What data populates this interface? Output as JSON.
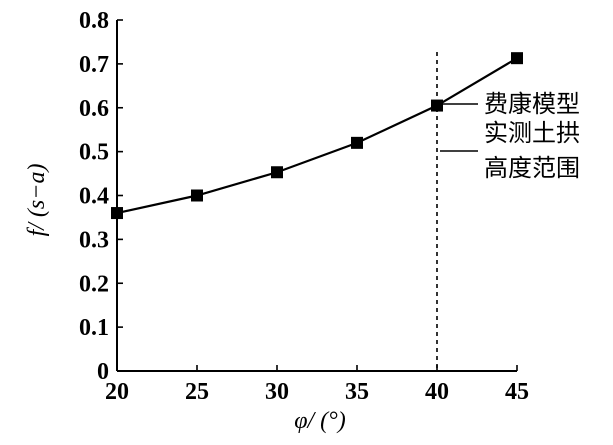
{
  "chart_data": {
    "type": "line",
    "x": [
      20,
      25,
      30,
      35,
      40,
      45
    ],
    "series": [
      {
        "name": "费康模型",
        "values": [
          0.36,
          0.4,
          0.453,
          0.52,
          0.605,
          0.713
        ]
      }
    ],
    "xlabel": "φ/ (°)",
    "ylabel": "f/ (s−a)",
    "xlim": [
      20,
      45
    ],
    "ylim": [
      0,
      0.8
    ],
    "xticks": [
      "20",
      "25",
      "30",
      "35",
      "40",
      "45"
    ],
    "yticks": [
      "0",
      "0.1",
      "0.2",
      "0.3",
      "0.4",
      "0.5",
      "0.6",
      "0.7",
      "0.8"
    ],
    "grid": false,
    "marker": "square",
    "vertical_line": {
      "x": 40,
      "style": "dashed"
    },
    "legend": [
      {
        "label": "费康模型",
        "symbol": "line-with-square"
      },
      {
        "label": "实测土拱高度范围",
        "symbol": "line",
        "lines": [
          "实测土拱",
          "高度范围"
        ]
      }
    ],
    "legend_position": "right"
  }
}
